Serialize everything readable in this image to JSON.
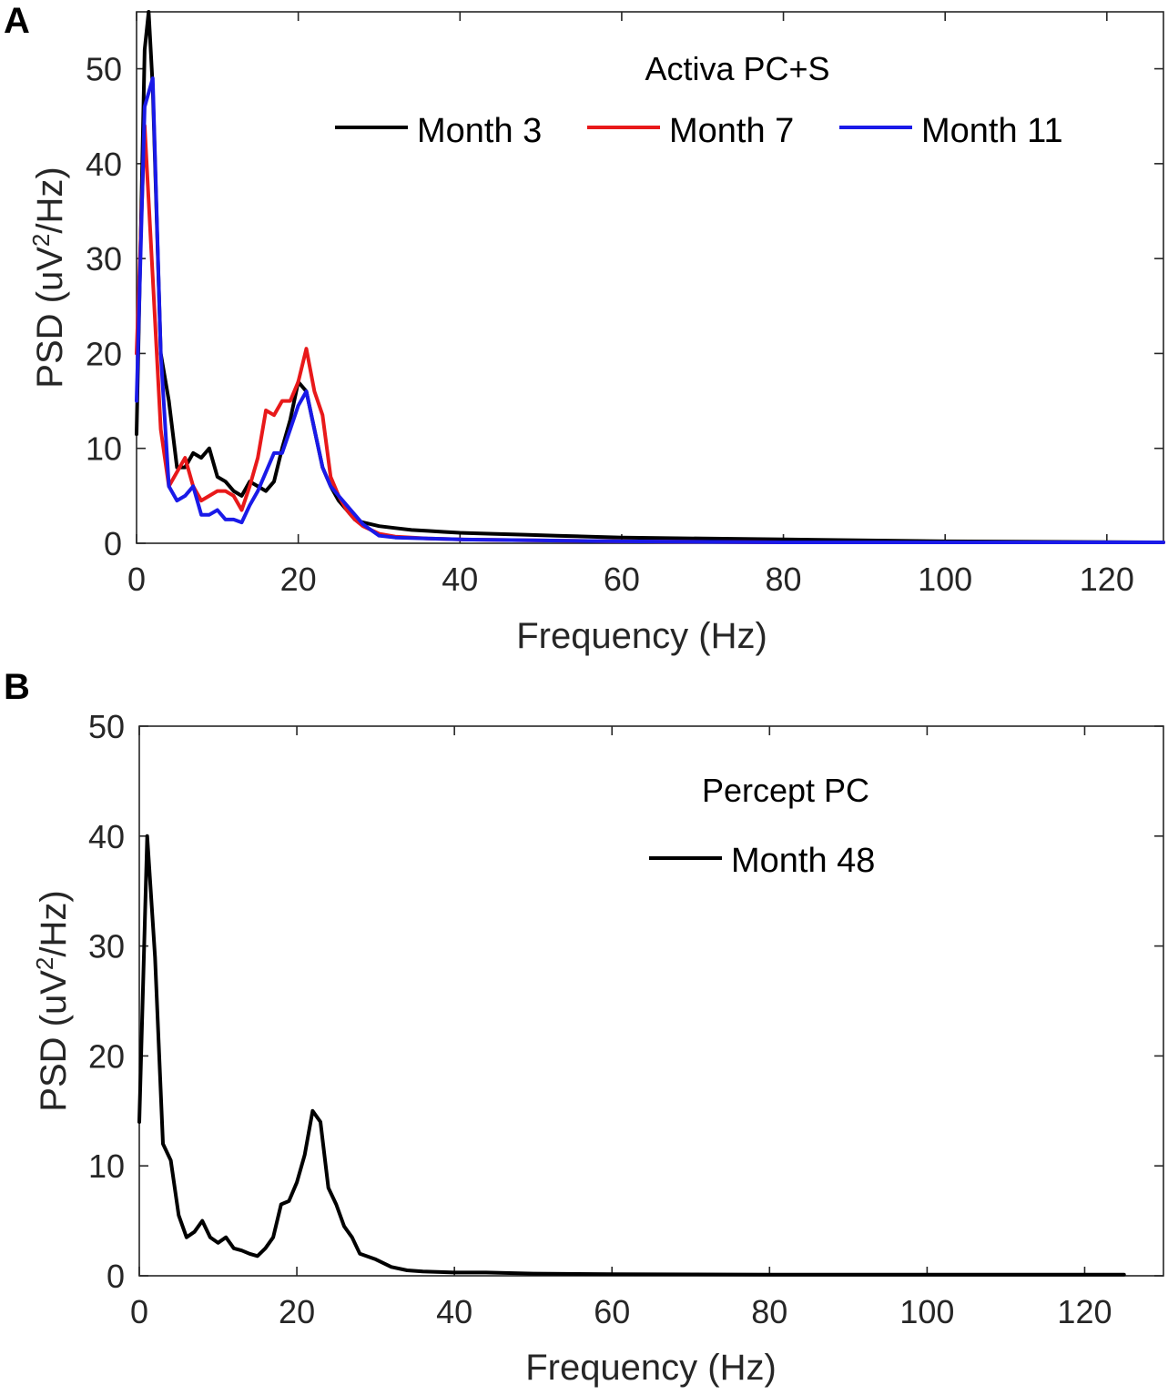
{
  "chart_data": [
    {
      "panel_label": "A",
      "type": "line",
      "legend_title": "Activa PC+S",
      "legend_position": "top-right",
      "xlabel": "Frequency (Hz)",
      "ylabel_parts": [
        "PSD (uV",
        "2",
        "/Hz)"
      ],
      "xlim": [
        0,
        127
      ],
      "ylim": [
        0,
        56
      ],
      "xticks": [
        0,
        20,
        40,
        60,
        80,
        100,
        120
      ],
      "yticks": [
        0,
        10,
        20,
        30,
        40,
        50
      ],
      "grid": false,
      "series": [
        {
          "name": "Month 3",
          "color": "#000000",
          "x": [
            0,
            1,
            1.5,
            2,
            3,
            4,
            5,
            6,
            7,
            8,
            9,
            10,
            11,
            12,
            13,
            14,
            15,
            16,
            17,
            18,
            19,
            20,
            21,
            22,
            23,
            24,
            25,
            26,
            27,
            28,
            30,
            32,
            34,
            36,
            38,
            40,
            44,
            48,
            52,
            56,
            60,
            70,
            80,
            100,
            127
          ],
          "values": [
            11.5,
            52,
            56,
            48,
            20,
            15,
            8,
            8,
            9.5,
            9,
            10,
            7,
            6.5,
            5.5,
            5,
            6.5,
            6,
            5.5,
            6.5,
            10,
            13,
            17,
            16,
            12,
            8,
            6,
            4.5,
            3.5,
            2.5,
            2.2,
            1.8,
            1.6,
            1.4,
            1.3,
            1.2,
            1.1,
            1.0,
            0.9,
            0.8,
            0.7,
            0.6,
            0.5,
            0.4,
            0.2,
            0.1
          ]
        },
        {
          "name": "Month 7",
          "color": "#e8191a",
          "x": [
            0,
            1,
            2,
            3,
            4,
            5,
            6,
            7,
            8,
            9,
            10,
            11,
            12,
            13,
            14,
            15,
            16,
            17,
            18,
            19,
            20,
            21,
            22,
            23,
            24,
            25,
            26,
            27,
            28,
            30,
            32,
            36,
            40,
            50,
            60,
            80,
            100,
            127
          ],
          "values": [
            20,
            44,
            28,
            12,
            6,
            7.5,
            9,
            6,
            4.5,
            5,
            5.5,
            5.5,
            5,
            3.5,
            6,
            9,
            14,
            13.5,
            15,
            15,
            17,
            20.5,
            16,
            13.5,
            7,
            5,
            3.5,
            2.5,
            1.8,
            1,
            0.7,
            0.5,
            0.4,
            0.3,
            0.2,
            0.1,
            0.1,
            0.1
          ]
        },
        {
          "name": "Month 11",
          "color": "#1a1ae8",
          "x": [
            0,
            1,
            2,
            3,
            4,
            5,
            6,
            7,
            8,
            9,
            10,
            11,
            12,
            13,
            14,
            15,
            16,
            17,
            18,
            19,
            20,
            21,
            22,
            23,
            24,
            25,
            26,
            27,
            28,
            30,
            32,
            36,
            40,
            50,
            60,
            80,
            100,
            127
          ],
          "values": [
            15,
            46,
            49,
            20,
            6,
            4.5,
            5,
            6,
            3,
            3,
            3.5,
            2.5,
            2.5,
            2.2,
            4,
            5.5,
            7.5,
            9.5,
            9.5,
            12,
            14.5,
            16,
            12,
            8,
            6,
            5,
            4,
            3,
            2,
            0.8,
            0.6,
            0.5,
            0.4,
            0.3,
            0.2,
            0.1,
            0.1,
            0.1
          ]
        }
      ]
    },
    {
      "panel_label": "B",
      "type": "line",
      "legend_title": "Percept PC",
      "legend_position": "top-right",
      "xlabel": "Frequency (Hz)",
      "ylabel_parts": [
        "PSD (uV",
        "2",
        "/Hz)"
      ],
      "xlim": [
        0,
        130
      ],
      "ylim": [
        0,
        50
      ],
      "xticks": [
        0,
        20,
        40,
        60,
        80,
        100,
        120
      ],
      "yticks": [
        0,
        10,
        20,
        30,
        40,
        50
      ],
      "grid": false,
      "series": [
        {
          "name": "Month 48",
          "color": "#000000",
          "x": [
            0,
            1,
            2,
            3,
            4,
            5,
            6,
            7,
            8,
            9,
            10,
            11,
            12,
            13,
            14,
            15,
            16,
            17,
            18,
            19,
            20,
            21,
            22,
            23,
            24,
            25,
            26,
            27,
            28,
            30,
            32,
            34,
            36,
            40,
            44,
            50,
            60,
            80,
            100,
            125
          ],
          "values": [
            14,
            40,
            29,
            12,
            10.5,
            5.5,
            3.5,
            4,
            5,
            3.5,
            3,
            3.5,
            2.5,
            2.3,
            2,
            1.8,
            2.5,
            3.5,
            6.5,
            6.8,
            8.5,
            11,
            15,
            14,
            8,
            6.5,
            4.5,
            3.5,
            2,
            1.5,
            0.8,
            0.5,
            0.4,
            0.3,
            0.3,
            0.2,
            0.15,
            0.1,
            0.1,
            0.1
          ]
        }
      ]
    }
  ]
}
